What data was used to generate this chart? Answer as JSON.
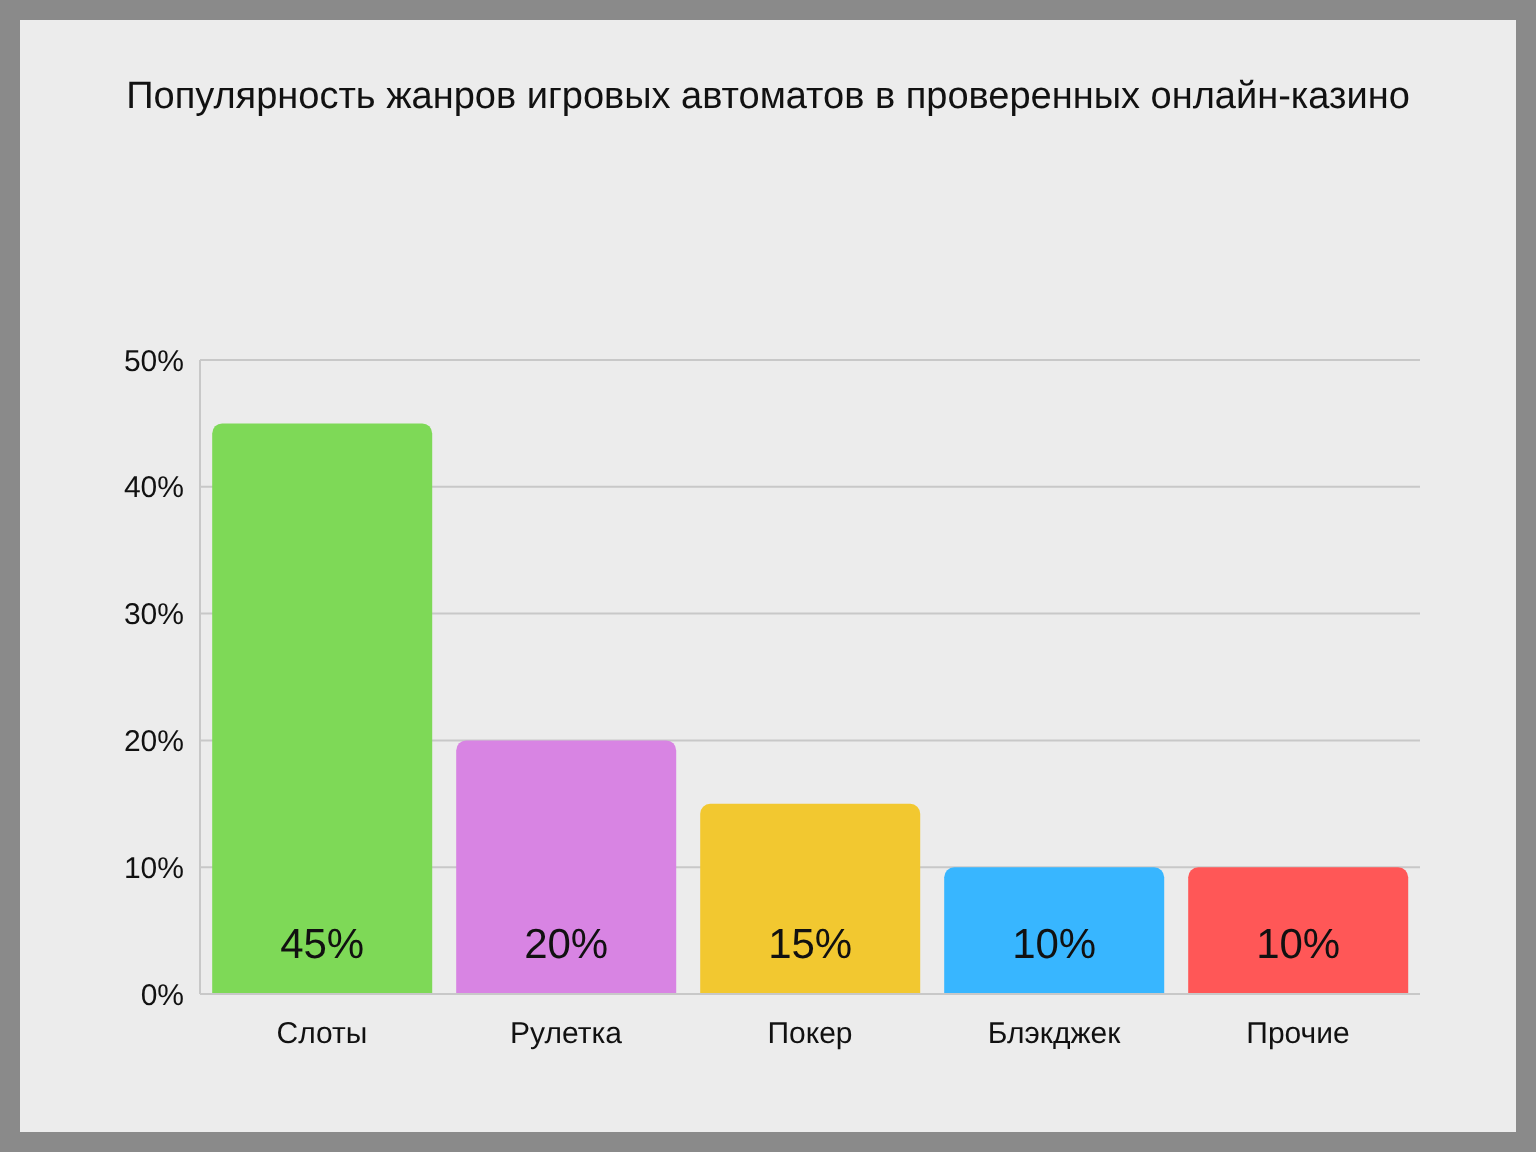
{
  "chart_data": {
    "type": "bar",
    "title": "Популярность жанров игровых автоматов в проверенных онлайн-казино",
    "categories": [
      "Слоты",
      "Рулетка",
      "Покер",
      "Блэкджек",
      "Прочие"
    ],
    "values": [
      45,
      20,
      15,
      10,
      10
    ],
    "colors": [
      "#7ed957",
      "#d884e3",
      "#f2c830",
      "#38b6ff",
      "#ff5757"
    ],
    "value_labels": [
      "45%",
      "20%",
      "15%",
      "10%",
      "10%"
    ],
    "ylim": [
      0,
      50
    ],
    "yticks": [
      {
        "value": 0,
        "label": "0%"
      },
      {
        "value": 10,
        "label": "10%"
      },
      {
        "value": 20,
        "label": "20%"
      },
      {
        "value": 30,
        "label": "30%"
      },
      {
        "value": 40,
        "label": "40%"
      },
      {
        "value": 50,
        "label": "50%"
      }
    ],
    "grid": "y",
    "legend": false
  }
}
